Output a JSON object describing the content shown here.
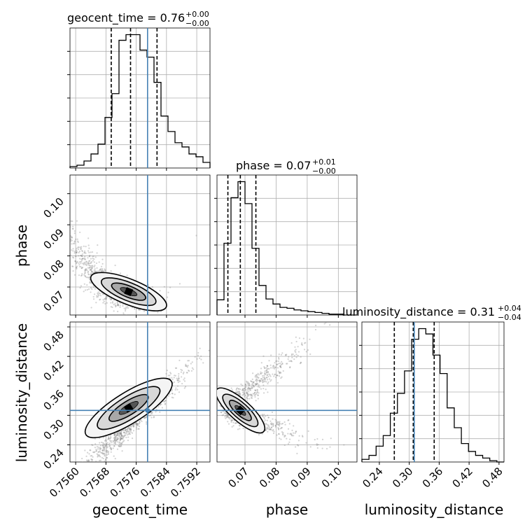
{
  "chart_data": {
    "type": "corner",
    "parameters": [
      "geocent_time",
      "phase",
      "luminosity_distance"
    ],
    "titles": [
      {
        "name": "geocent_time",
        "value": "0.76",
        "upper": "+0.00",
        "lower": "−0.00"
      },
      {
        "name": "phase",
        "value": "0.07",
        "upper": "+0.01",
        "lower": "−0.00"
      },
      {
        "name": "luminosity_distance",
        "value": "0.31",
        "upper": "+0.04",
        "lower": "−0.04"
      }
    ],
    "axis_labels": {
      "x": [
        "geocent_time",
        "phase",
        "luminosity_distance"
      ],
      "y": [
        "phase",
        "luminosity_distance"
      ]
    },
    "ranges": {
      "geocent_time": [
        0.75585,
        0.75955
      ],
      "phase": [
        0.061,
        0.106
      ],
      "luminosity_distance": [
        0.205,
        0.49
      ]
    },
    "ticks": {
      "geocent_time": [
        "0.7560",
        "0.7568",
        "0.7576",
        "0.7584",
        "0.7592"
      ],
      "phase": [
        "0.07",
        "0.08",
        "0.09",
        "0.10"
      ],
      "luminosity_distance": [
        "0.24",
        "0.30",
        "0.36",
        "0.42",
        "0.48"
      ]
    },
    "truths": {
      "geocent_time": 0.7579,
      "phase": null,
      "luminosity_distance": 0.31
    },
    "quantiles": {
      "geocent_time": [
        0.75694,
        0.75745,
        0.75815
      ],
      "phase": [
        0.0645,
        0.0685,
        0.0735
      ],
      "luminosity_distance": [
        0.27,
        0.308,
        0.35
      ]
    },
    "histograms": {
      "geocent_time": {
        "edges_start": 0.75585,
        "bin_width": 0.000185,
        "counts": [
          1,
          2,
          5,
          10,
          17,
          36,
          53,
          91,
          95,
          95,
          84,
          79,
          61,
          37,
          26,
          18,
          15,
          10,
          8,
          4
        ]
      },
      "phase": {
        "edges_start": 0.061,
        "bin_width": 0.00225,
        "counts": [
          18,
          85,
          139,
          158,
          132,
          79,
          35,
          19,
          13,
          9,
          8,
          6,
          5,
          4,
          3,
          2,
          1,
          1,
          0,
          0
        ]
      },
      "luminosity_distance": {
        "edges_start": 0.205,
        "bin_width": 0.01425,
        "counts": [
          2,
          5,
          12,
          20,
          37,
          52,
          69,
          93,
          101,
          97,
          81,
          67,
          41,
          26,
          14,
          8,
          5,
          3,
          1,
          0
        ]
      }
    },
    "colors": {
      "truth": "#4682b4",
      "line": "#000000",
      "grid": "#b0b0b0",
      "points": "#808080"
    }
  }
}
